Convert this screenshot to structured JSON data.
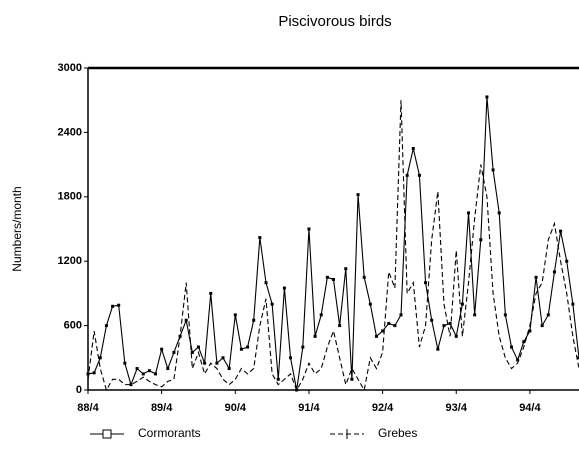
{
  "chart_data": {
    "type": "line",
    "title": "Piscivorous birds",
    "y_label": "Numbers/month",
    "categories": [
      "88/4",
      null,
      null,
      null,
      null,
      null,
      null,
      null,
      null,
      null,
      null,
      null,
      "89/4",
      null,
      null,
      null,
      null,
      null,
      null,
      null,
      null,
      null,
      null,
      null,
      "90/4",
      null,
      null,
      null,
      null,
      null,
      null,
      null,
      null,
      null,
      null,
      null,
      "91/4",
      null,
      null,
      null,
      null,
      null,
      null,
      null,
      null,
      null,
      null,
      null,
      "92/4",
      null,
      null,
      null,
      null,
      null,
      null,
      null,
      null,
      null,
      null,
      null,
      "93/4",
      null,
      null,
      null,
      null,
      null,
      null,
      null,
      null,
      null,
      null,
      null,
      "94/4",
      null,
      null,
      null,
      null,
      null,
      null,
      null,
      null
    ],
    "series": [
      {
        "name": "Cormorants",
        "color": "#000000",
        "dash": false,
        "values": [
          150,
          160,
          300,
          600,
          780,
          790,
          250,
          50,
          200,
          150,
          180,
          150,
          380,
          200,
          350,
          500,
          650,
          350,
          400,
          250,
          900,
          250,
          300,
          200,
          700,
          380,
          400,
          650,
          1420,
          1000,
          800,
          100,
          950,
          300,
          0,
          400,
          1500,
          500,
          700,
          1050,
          1030,
          600,
          1130,
          100,
          1820,
          1050,
          800,
          500,
          550,
          620,
          600,
          700,
          2000,
          2250,
          2000,
          1000,
          650,
          380,
          600,
          620,
          500,
          800,
          1650,
          700,
          1400,
          2730,
          2050,
          1650,
          700,
          400,
          280,
          450,
          550,
          1050,
          600,
          700,
          1100,
          1480,
          1200,
          800,
          300
        ]
      },
      {
        "name": "Grebes",
        "color": "#000000",
        "dash": true,
        "values": [
          100,
          550,
          200,
          0,
          100,
          100,
          50,
          50,
          80,
          120,
          80,
          50,
          30,
          80,
          100,
          500,
          1000,
          200,
          350,
          150,
          250,
          200,
          100,
          50,
          100,
          200,
          150,
          200,
          600,
          850,
          150,
          50,
          100,
          150,
          0,
          100,
          250,
          150,
          200,
          400,
          550,
          300,
          50,
          200,
          100,
          0,
          300,
          200,
          350,
          1100,
          950,
          2700,
          900,
          1000,
          400,
          600,
          1400,
          1850,
          800,
          500,
          1300,
          500,
          1000,
          1600,
          2100,
          1800,
          900,
          500,
          300,
          200,
          250,
          400,
          600,
          900,
          1000,
          1400,
          1550,
          1200,
          900,
          500,
          200
        ]
      }
    ],
    "ylim": [
      0,
      3000
    ],
    "yticks": [
      0,
      600,
      1200,
      1800,
      2400,
      3000
    ]
  }
}
